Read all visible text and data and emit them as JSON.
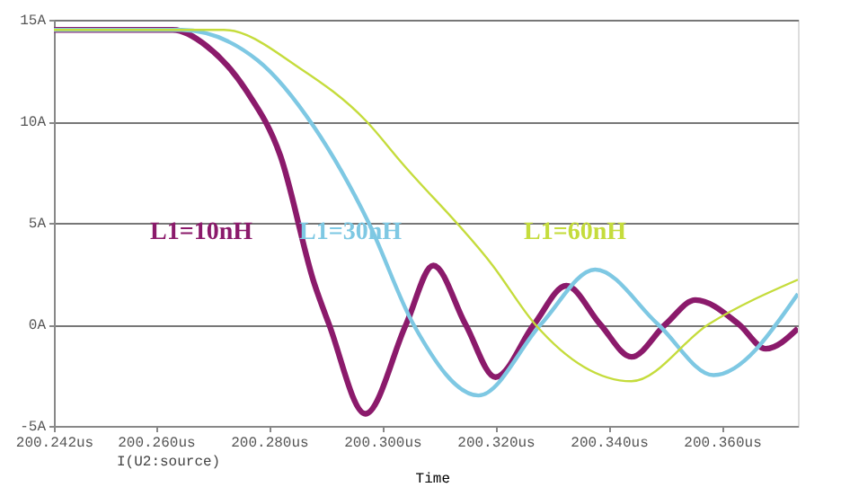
{
  "chart_data": {
    "type": "line",
    "xlabel": "Time",
    "annotations": [
      "I(U2:source)",
      "L1=10nH",
      "L1=30nH",
      "L1=60nH"
    ],
    "xlim": [
      200.242,
      200.3734
    ],
    "ylim": [
      -5,
      15
    ],
    "xticks": [
      {
        "value": 200.242,
        "label": "200.242us"
      },
      {
        "value": 200.26,
        "label": "200.260us"
      },
      {
        "value": 200.28,
        "label": "200.280us"
      },
      {
        "value": 200.3,
        "label": "200.300us"
      },
      {
        "value": 200.32,
        "label": "200.320us"
      },
      {
        "value": 200.34,
        "label": "200.340us"
      },
      {
        "value": 200.36,
        "label": "200.360us"
      }
    ],
    "yticks": [
      {
        "value": -5,
        "label": "-5A"
      },
      {
        "value": 0,
        "label": "0A"
      },
      {
        "value": 5,
        "label": "5A"
      },
      {
        "value": 10,
        "label": "10A"
      },
      {
        "value": 15,
        "label": "15A"
      }
    ],
    "grid": "y",
    "line_style": "solid",
    "series": [
      {
        "color": "#8b1a6b",
        "x": [
          200.242,
          200.263,
          200.269,
          200.276,
          200.282,
          200.288,
          200.2906,
          200.297,
          200.3042,
          200.309,
          200.3147,
          200.32,
          200.3268,
          200.3325,
          200.3385,
          200.344,
          200.35,
          200.3553,
          200.363,
          200.3677,
          200.3734
        ],
        "values": [
          14.5,
          14.5,
          13.7,
          11.5,
          8.3,
          2.0,
          0,
          -4.4,
          0,
          2.9,
          0,
          -2.6,
          0,
          1.9,
          0,
          -1.6,
          0,
          1.2,
          0,
          -1.2,
          -0.2
        ]
      },
      {
        "color": "#7ec8e3",
        "x": [
          200.242,
          200.2645,
          200.278,
          200.288,
          200.2976,
          200.3055,
          200.317,
          200.328,
          200.3376,
          200.3487,
          200.3585,
          200.3734
        ],
        "values": [
          14.5,
          14.5,
          13.0,
          9.7,
          5.0,
          0,
          -3.5,
          0,
          2.7,
          0,
          -2.5,
          1.5
        ]
      },
      {
        "color": "#c5dc3c",
        "x": [
          200.242,
          200.272,
          200.2855,
          200.2972,
          200.3033,
          200.3195,
          200.327,
          200.344,
          200.3576,
          200.3734
        ],
        "values": [
          14.5,
          14.5,
          12.6,
          10.0,
          8.0,
          2.9,
          0,
          -2.8,
          0,
          2.2
        ]
      }
    ]
  }
}
